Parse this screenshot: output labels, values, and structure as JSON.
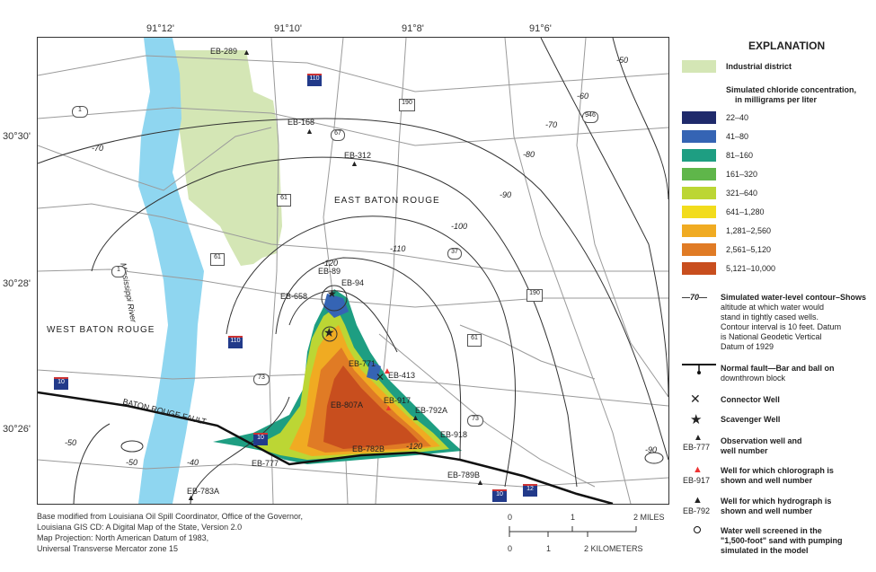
{
  "map": {
    "coordinates": {
      "longitudes": [
        "91°12'",
        "91°10'",
        "91°8'",
        "91°6'"
      ],
      "latitudes": [
        "30°30'",
        "30°28'",
        "30°26'"
      ]
    },
    "areas": {
      "east_baton_rouge": "EAST BATON ROUGE",
      "west_baton_rouge": "WEST BATON ROUGE",
      "mississippi_river": "Mississippi River",
      "baton_rouge_fault": "BATON ROUGE FAULT"
    },
    "contour_labels": [
      "-50",
      "-60",
      "-70",
      "-80",
      "-90",
      "-100",
      "-110",
      "-120",
      "-70",
      "-50",
      "-40",
      "-50",
      "-120",
      "-90"
    ],
    "wells": [
      "EB-289",
      "EB-168",
      "EB-312",
      "EB-89",
      "EB-94",
      "EB-658",
      "EB-771",
      "EB-413",
      "EB-917",
      "EB-807A",
      "EB-792A",
      "EB-918",
      "EB-782B",
      "EB-777",
      "EB-789B",
      "EB-783A"
    ],
    "routes": [
      "110",
      "1",
      "190",
      "67",
      "946",
      "61",
      "37",
      "61",
      "190",
      "1",
      "61",
      "110",
      "73",
      "10",
      "73",
      "10",
      "10",
      "12"
    ]
  },
  "legend": {
    "title": "EXPLANATION",
    "industrial": "Industrial district",
    "chloride_title_1": "Simulated chloride concentration,",
    "chloride_title_2": "in milligrams per liter",
    "chloride_classes": [
      {
        "label": "22–40",
        "color": "#1f2a6b"
      },
      {
        "label": "41–80",
        "color": "#3564b4"
      },
      {
        "label": "81–160",
        "color": "#1e9e82"
      },
      {
        "label": "161–320",
        "color": "#5fb64a"
      },
      {
        "label": "321–640",
        "color": "#bcd634"
      },
      {
        "label": "641–1,280",
        "color": "#f2dc1c"
      },
      {
        "label": "1,281–2,560",
        "color": "#f0ab22"
      },
      {
        "label": "2,561–5,120",
        "color": "#e07b25"
      },
      {
        "label": "5,121–10,000",
        "color": "#c84e1e"
      }
    ],
    "contour_symbol": "—70—",
    "contour_lines": [
      "Simulated water-level contour–Shows",
      "altitude at which water would",
      "stand in tightly cased wells.",
      "Contour interval is 10 feet. Datum",
      "is National Geodetic Vertical",
      "Datum of 1929"
    ],
    "fault_lines": [
      "Normal fault—Bar and ball on",
      "downthrown block"
    ],
    "connector": "Connector Well",
    "scavenger": "Scavenger Well",
    "observation_lines": [
      "Observation well and",
      "well number"
    ],
    "observation_example": "EB-777",
    "chlorograph_lines": [
      "Well for which chlorograph is",
      "shown and well number"
    ],
    "chlorograph_example": "EB-917",
    "hydrograph_lines": [
      "Well for which hydrograph is",
      "shown and well number"
    ],
    "hydrograph_example": "EB-792",
    "water_well_lines": [
      "Water well screened in the",
      "\"1,500-foot\" sand with pumping",
      "simulated in the model"
    ]
  },
  "credits": [
    "Base modified from Louisiana Oil Spill Coordinator, Office of the Governor,",
    "Louisiana GIS CD: A Digital Map of the State, Version 2.0",
    "Map Projection: North American Datum of 1983,",
    "Universal Transverse Mercator zone 15"
  ],
  "scale": {
    "miles": [
      "0",
      "1",
      "2 MILES"
    ],
    "km": [
      "0",
      "1",
      "2 KILOMETERS"
    ]
  },
  "colors": {
    "river": "#8fd6f0",
    "industrial": "#d4e6b5",
    "road": "#9a9a9a",
    "contour": "#333333"
  }
}
